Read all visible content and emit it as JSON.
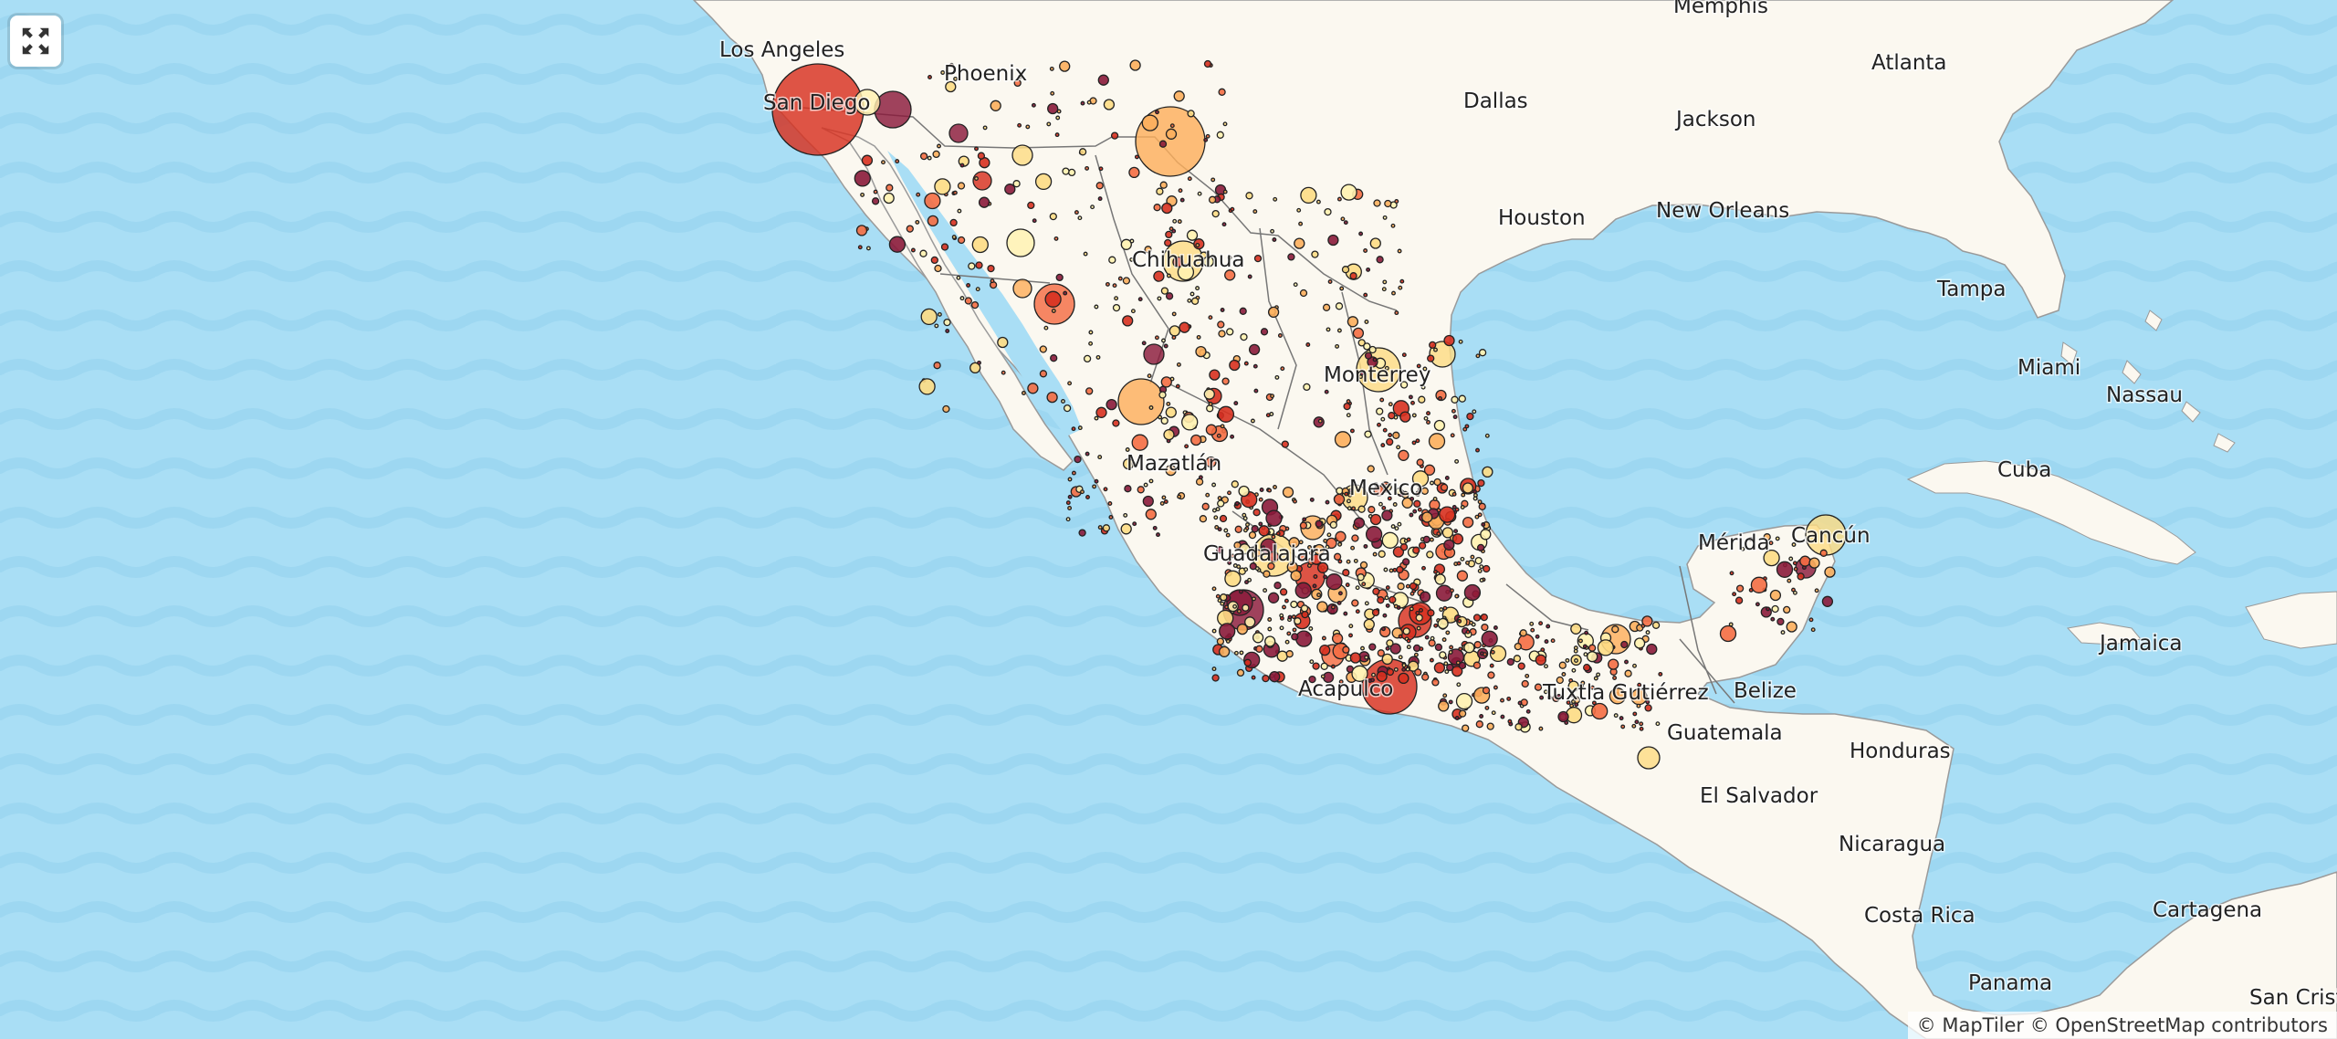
{
  "map": {
    "attribution": "© MapTiler © OpenStreetMap contributors",
    "colors": {
      "water": "#a9def5",
      "wave": "#9dd7f1",
      "land": "#fbf8f0",
      "border": "#777777"
    },
    "places": [
      {
        "id": "los-angeles",
        "name": "Los Angeles"
      },
      {
        "id": "phoenix",
        "name": "Phoenix"
      },
      {
        "id": "memphis",
        "name": "Memphis"
      },
      {
        "id": "dallas",
        "name": "Dallas"
      },
      {
        "id": "atlanta",
        "name": "Atlanta"
      },
      {
        "id": "jackson",
        "name": "Jackson"
      },
      {
        "id": "houston",
        "name": "Houston"
      },
      {
        "id": "new-orleans",
        "name": "New Orleans"
      },
      {
        "id": "tampa",
        "name": "Tampa"
      },
      {
        "id": "miami",
        "name": "Miami"
      },
      {
        "id": "nassau",
        "name": "Nassau"
      },
      {
        "id": "cuba",
        "name": "Cuba"
      },
      {
        "id": "jamaica",
        "name": "Jamaica"
      },
      {
        "id": "belize",
        "name": "Belize"
      },
      {
        "id": "guatemala",
        "name": "Guatemala"
      },
      {
        "id": "honduras",
        "name": "Honduras"
      },
      {
        "id": "el-salvador",
        "name": "El Salvador"
      },
      {
        "id": "nicaragua",
        "name": "Nicaragua"
      },
      {
        "id": "costa-rica",
        "name": "Costa Rica"
      },
      {
        "id": "cartagena",
        "name": "Cartagena"
      },
      {
        "id": "panama",
        "name": "Panama"
      },
      {
        "id": "san-cristobal",
        "name": "San Crist"
      },
      {
        "id": "san-diego",
        "name": "San Diego"
      },
      {
        "id": "chihuahua",
        "name": "Chihuahua"
      },
      {
        "id": "monterrey",
        "name": "Monterrey"
      },
      {
        "id": "mazatlan",
        "name": "Mazatlán"
      },
      {
        "id": "mexico",
        "name": "Mexico"
      },
      {
        "id": "guadalajara",
        "name": "Guadalajara"
      },
      {
        "id": "acapulco",
        "name": "Acapulco"
      },
      {
        "id": "tuxtla",
        "name": "Tuxtla Gutiérrez"
      },
      {
        "id": "merida",
        "name": "Mérida"
      },
      {
        "id": "cancun",
        "name": "Cancún"
      }
    ]
  }
}
